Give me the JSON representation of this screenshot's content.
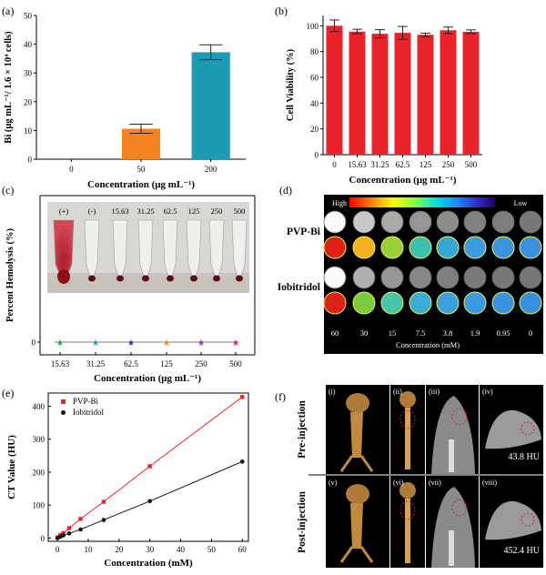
{
  "panels": {
    "a": {
      "letter": "(a)"
    },
    "b": {
      "letter": "(b)"
    },
    "c": {
      "letter": "(c)"
    },
    "d": {
      "letter": "(d)"
    },
    "e": {
      "letter": "(e)"
    },
    "f": {
      "letter": "(f)"
    }
  },
  "chart_data": [
    {
      "id": "a",
      "type": "bar",
      "categories": [
        "0",
        "50",
        "200"
      ],
      "values": [
        0,
        10.6,
        37.2
      ],
      "errors": [
        0,
        1.6,
        2.6
      ],
      "colors": [
        "#f58220",
        "#f58220",
        "#1e9bb4"
      ],
      "xlabel": "Concentration (μg mL⁻¹)",
      "ylabel": "Bi (μg mL⁻¹/ 1.6 × 10⁴ cells)",
      "ylim": [
        0,
        50
      ],
      "yticks": [
        0,
        10,
        20,
        30,
        40,
        50
      ]
    },
    {
      "id": "b",
      "type": "bar",
      "categories": [
        "0",
        "15.63",
        "31.25",
        "62.5",
        "125",
        "250",
        "500"
      ],
      "values": [
        100,
        95.5,
        93.8,
        94.5,
        93.0,
        96.5,
        95.3
      ],
      "errors": [
        4.5,
        1.8,
        3.2,
        5.0,
        1.3,
        2.5,
        1.5
      ],
      "color": "#e8232a",
      "xlabel": "Concentration (μg mL⁻¹)",
      "ylabel": "Cell Viability (%)",
      "ylim": [
        0,
        108
      ],
      "yticks": [
        0,
        20,
        40,
        60,
        80,
        100
      ]
    },
    {
      "id": "c",
      "type": "scatter",
      "categories": [
        "15.63",
        "31.25",
        "62.5",
        "125",
        "250",
        "500"
      ],
      "values": [
        0,
        0,
        0,
        0,
        0,
        0
      ],
      "colors": [
        "#2a9d4a",
        "#1e9bb4",
        "#3a3ab0",
        "#f58220",
        "#8a3ab0",
        "#d6286b"
      ],
      "xlabel": "Concentration (μg mL⁻¹)",
      "ylabel": "Percent Hemolysis (%)",
      "photo_labels": [
        "(+)",
        "(-)",
        "15.63",
        "31.25",
        "62.5",
        "125",
        "250",
        "500"
      ]
    },
    {
      "id": "e",
      "type": "line",
      "xlabel": "Concentration (mM)",
      "ylabel": "CT Value (HU)",
      "xlim": [
        -3,
        62
      ],
      "ylim": [
        -10,
        440
      ],
      "xticks": [
        0,
        10,
        20,
        30,
        40,
        50,
        60
      ],
      "yticks": [
        0,
        100,
        200,
        300,
        400
      ],
      "series": [
        {
          "name": "PVP-Bi",
          "color": "#e8232a",
          "marker": "square",
          "x": [
            0,
            0.95,
            1.9,
            3.8,
            7.5,
            15,
            30,
            60
          ],
          "y": [
            2,
            9,
            15,
            30,
            58,
            110,
            218,
            428
          ]
        },
        {
          "name": "Iobitridol",
          "color": "#111111",
          "marker": "circle",
          "x": [
            0,
            0.95,
            1.9,
            3.8,
            7.5,
            15,
            30,
            60
          ],
          "y": [
            0,
            4,
            8,
            14,
            26,
            55,
            112,
            232
          ]
        }
      ]
    }
  ],
  "panel_d": {
    "scale_high": "High",
    "scale_low": "Low",
    "row_labels": [
      "PVP-Bi",
      "Iobitridol"
    ],
    "concentrations": [
      "60",
      "30",
      "15",
      "7.5",
      "3.8",
      "1.9",
      "0.95",
      "0"
    ],
    "xlabel": "Concentration (mM)",
    "gray_levels": [
      [
        250,
        200,
        170,
        150,
        140,
        130,
        125,
        120
      ],
      [
        250,
        175,
        150,
        135,
        128,
        122,
        120,
        118
      ]
    ],
    "color_maps": [
      [
        "#e02018",
        "#f0b020",
        "#9ad03a",
        "#3ec0b0",
        "#38a8d8",
        "#3a9ce0",
        "#3c94e0",
        "#3a8fe0"
      ],
      [
        "#e02018",
        "#7ccc40",
        "#48c4a8",
        "#3aacd8",
        "#3aa0e0",
        "#3c98e0",
        "#3a92e0",
        "#3a8fe0"
      ]
    ]
  },
  "panel_f": {
    "row_labels": [
      "Pre-injection",
      "Post-injection"
    ],
    "sub_labels": [
      "(i)",
      "(ii)",
      "(iii)",
      "(iv)",
      "(v)",
      "(vi)",
      "(vii)",
      "(viii)"
    ],
    "hu_values": [
      "43.8 HU",
      "452.4 HU"
    ]
  }
}
